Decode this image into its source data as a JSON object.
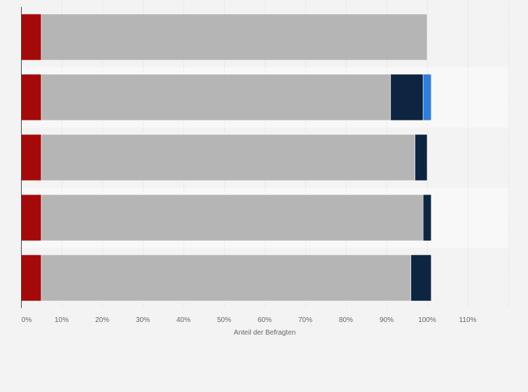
{
  "chart_data": {
    "type": "bar",
    "orientation": "horizontal",
    "stacked": true,
    "categories": [
      "",
      "",
      "",
      "",
      ""
    ],
    "series": [
      {
        "color": "#a50a0a",
        "values": [
          5,
          5,
          5,
          5,
          5
        ]
      },
      {
        "color": "#b5b5b5",
        "values": [
          95,
          86,
          92,
          94,
          91
        ]
      },
      {
        "color": "#0d2540",
        "values": [
          0,
          8,
          3,
          2,
          5
        ]
      },
      {
        "color": "#2e7ee0",
        "values": [
          0,
          2,
          0,
          0,
          0
        ]
      }
    ],
    "x_ticks": [
      "0%",
      "10%",
      "20%",
      "30%",
      "40%",
      "50%",
      "60%",
      "70%",
      "80%",
      "90%",
      "100%",
      "110%"
    ],
    "xlabel": "Anteil der Befragten",
    "xlim": [
      0,
      120
    ],
    "grid": true,
    "legend": "none"
  }
}
